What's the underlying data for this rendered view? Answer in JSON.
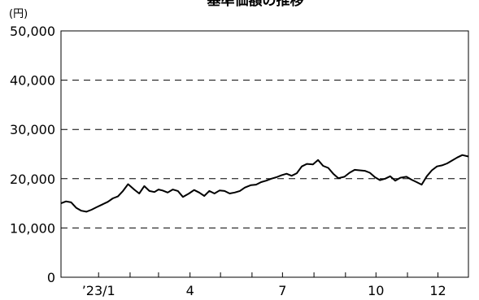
{
  "chart_data": {
    "type": "line",
    "title": "基準価額の推移",
    "ylabel": "(円)",
    "xlabel": "",
    "ylim": [
      0,
      50000
    ],
    "yticks": [
      0,
      10000,
      20000,
      30000,
      40000,
      50000
    ],
    "ytick_labels": [
      "0",
      "10,000",
      "20,000",
      "30,000",
      "40,000",
      "50,000"
    ],
    "xlim": [
      "2022-11-25",
      "2023-12-31"
    ],
    "xticks": [
      {
        "date": "2023-01-01",
        "label": "’23/1"
      },
      {
        "date": "2023-04-01",
        "label": "4"
      },
      {
        "date": "2023-07-01",
        "label": "7"
      },
      {
        "date": "2023-10-01",
        "label": "10"
      },
      {
        "date": "2023-12-01",
        "label": "12"
      }
    ],
    "minor_ticks": [
      "2023-02-01",
      "2023-03-01",
      "2023-05-01",
      "2023-06-01",
      "2023-08-01",
      "2023-09-01",
      "2023-11-01"
    ],
    "grid": "horizontal-dashed",
    "line_color": "#000000",
    "series": [
      {
        "x": [
          "2022-11-25",
          "2022-11-30",
          "2022-12-05",
          "2022-12-10",
          "2022-12-15",
          "2022-12-20",
          "2022-12-25",
          "2022-12-30",
          "2023-01-05",
          "2023-01-10",
          "2023-01-15",
          "2023-01-20",
          "2023-01-25",
          "2023-01-30",
          "2023-02-05",
          "2023-02-10",
          "2023-02-15",
          "2023-02-20",
          "2023-02-25",
          "2023-03-01",
          "2023-03-05",
          "2023-03-10",
          "2023-03-15",
          "2023-03-20",
          "2023-03-25",
          "2023-03-31",
          "2023-04-05",
          "2023-04-10",
          "2023-04-15",
          "2023-04-20",
          "2023-04-25",
          "2023-04-30",
          "2023-05-05",
          "2023-05-10",
          "2023-05-15",
          "2023-05-20",
          "2023-05-25",
          "2023-05-31",
          "2023-06-05",
          "2023-06-10",
          "2023-06-15",
          "2023-06-20",
          "2023-06-25",
          "2023-06-30",
          "2023-07-05",
          "2023-07-10",
          "2023-07-15",
          "2023-07-20",
          "2023-07-25",
          "2023-07-31",
          "2023-08-05",
          "2023-08-10",
          "2023-08-15",
          "2023-08-20",
          "2023-08-25",
          "2023-08-31",
          "2023-09-05",
          "2023-09-10",
          "2023-09-15",
          "2023-09-20",
          "2023-09-25",
          "2023-09-30",
          "2023-10-05",
          "2023-10-10",
          "2023-10-15",
          "2023-10-20",
          "2023-10-25",
          "2023-10-31",
          "2023-11-05",
          "2023-11-10",
          "2023-11-15",
          "2023-11-20",
          "2023-11-25",
          "2023-11-30",
          "2023-12-05",
          "2023-12-10",
          "2023-12-15",
          "2023-12-20",
          "2023-12-25",
          "2023-12-31"
        ],
        "y": [
          15000,
          15400,
          15200,
          14100,
          13500,
          13300,
          13700,
          14200,
          14800,
          15300,
          16000,
          16400,
          17500,
          18900,
          17800,
          17000,
          18500,
          17500,
          17300,
          17800,
          17600,
          17200,
          17800,
          17500,
          16300,
          17000,
          17700,
          17200,
          16500,
          17500,
          17000,
          17600,
          17500,
          17000,
          17200,
          17500,
          18200,
          18700,
          18800,
          19300,
          19600,
          20000,
          20300,
          20700,
          21000,
          20600,
          21100,
          22500,
          23000,
          22900,
          23800,
          22600,
          22200,
          21000,
          20100,
          20400,
          21200,
          21800,
          21700,
          21600,
          21200,
          20300,
          19700,
          20000,
          20500,
          19600,
          20200,
          20400,
          19800,
          19300,
          18800,
          20500,
          21700,
          22500,
          22700,
          23100,
          23700,
          24300,
          24800,
          24500
        ]
      }
    ]
  }
}
